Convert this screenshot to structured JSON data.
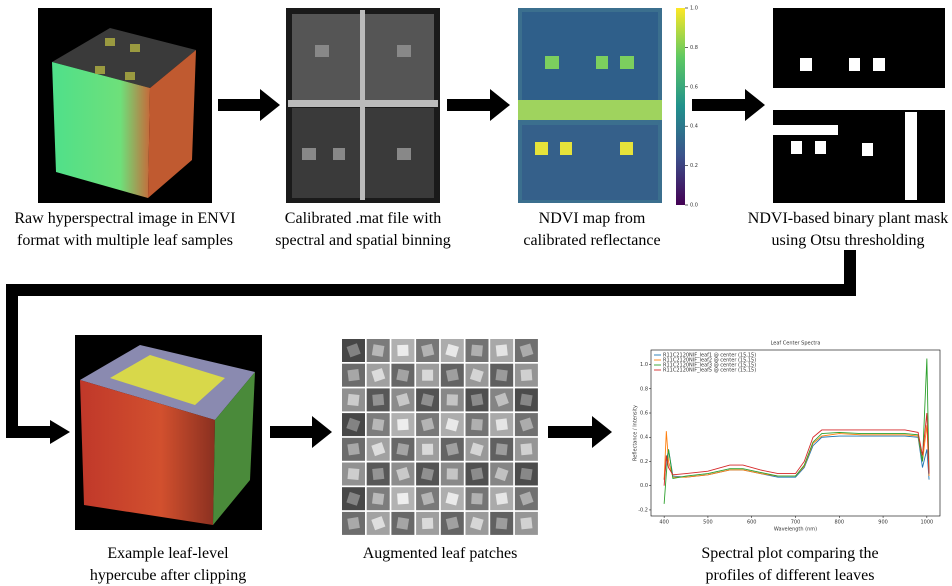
{
  "steps": [
    {
      "caption": [
        "Raw hyperspectral image in ENVI",
        "format with multiple leaf samples"
      ]
    },
    {
      "caption": [
        "Calibrated .mat file with",
        "spectral and spatial binning"
      ]
    },
    {
      "caption": [
        "NDVI map from",
        "calibrated reflectance"
      ]
    },
    {
      "caption": [
        "NDVI-based binary plant mask",
        "using Otsu thresholding"
      ]
    },
    {
      "caption": [
        "Example leaf-level",
        "hypercube after clipping"
      ]
    },
    {
      "caption": [
        "Augmented leaf patches"
      ]
    },
    {
      "caption": [
        "Spectral plot comparing the",
        "profiles of different leaves"
      ]
    }
  ],
  "ndvi_colorbar": {
    "ylim": [
      0,
      1
    ],
    "yticks": [
      {
        "value": 0,
        "label": "0.0"
      },
      0.2,
      0.4,
      0.6,
      0.8,
      {
        "value": 1,
        "label": "1.0"
      }
    ]
  },
  "plot": {
    "type": "line",
    "title": "Leaf Center Spectra",
    "x_label": "Wavelength (nm)",
    "y_label": "Reflectance / Intensity",
    "xlim": [
      370,
      1030
    ],
    "ylim": [
      -0.25,
      1.12
    ],
    "xticks": [
      400,
      500,
      600,
      700,
      800,
      900,
      1000
    ],
    "yticks": [
      -0.2,
      {
        "value": 0,
        "label": "0.0"
      },
      0.2,
      0.4,
      0.6,
      0.8,
      {
        "value": 1,
        "label": "1.0"
      }
    ],
    "x": [
      400,
      405,
      410,
      420,
      450,
      500,
      550,
      580,
      620,
      660,
      700,
      720,
      740,
      760,
      800,
      850,
      900,
      950,
      980,
      990,
      1000,
      1005
    ],
    "series": [
      {
        "name": "R11C2120NIF_leaf1 @ center (15,15)",
        "color": "#1f77b4",
        "values": [
          0.05,
          0.2,
          0.3,
          0.08,
          0.07,
          0.09,
          0.13,
          0.13,
          0.1,
          0.07,
          0.07,
          0.15,
          0.33,
          0.4,
          0.41,
          0.41,
          0.41,
          0.41,
          0.4,
          0.15,
          0.3,
          0.05
        ]
      },
      {
        "name": "R11C2120NIF_leaf2 @ center (15,15)",
        "color": "#ff7f0e",
        "values": [
          0.05,
          0.45,
          0.2,
          0.07,
          0.07,
          0.09,
          0.13,
          0.13,
          0.1,
          0.08,
          0.08,
          0.16,
          0.35,
          0.41,
          0.43,
          0.42,
          0.42,
          0.42,
          0.41,
          0.2,
          0.5,
          0.08
        ]
      },
      {
        "name": "R11C2120NIF_leaf3 @ center (15,15)",
        "color": "#2ca02c",
        "values": [
          -0.15,
          0.1,
          0.3,
          0.06,
          0.08,
          0.1,
          0.14,
          0.14,
          0.11,
          0.08,
          0.08,
          0.17,
          0.36,
          0.43,
          0.44,
          0.43,
          0.43,
          0.43,
          0.42,
          0.2,
          1.05,
          0.1
        ]
      },
      {
        "name": "R11C2120NIF_leaf5 @ center (15,15)",
        "color": "#d62728",
        "values": [
          0,
          0.25,
          0.15,
          0.09,
          0.1,
          0.12,
          0.17,
          0.17,
          0.13,
          0.1,
          0.1,
          0.2,
          0.4,
          0.46,
          0.46,
          0.46,
          0.46,
          0.46,
          0.44,
          0.25,
          0.6,
          0.1
        ]
      }
    ]
  }
}
